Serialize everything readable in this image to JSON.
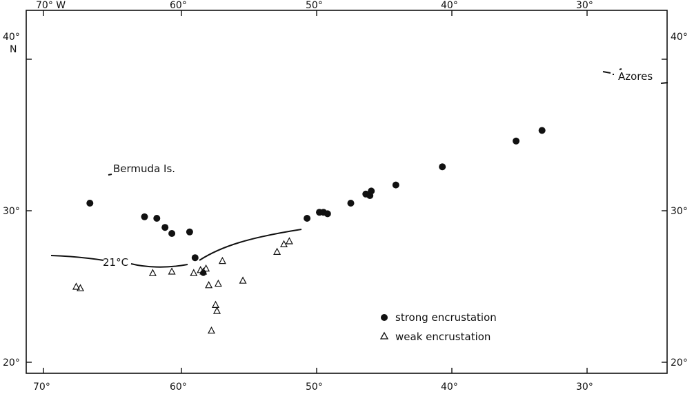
{
  "top_axis_labels": [
    "70° W",
    "60°",
    "50°",
    "40°",
    "30°"
  ],
  "bottom_axis_labels": [
    "70°",
    "60°",
    "50°",
    "40°",
    "30°"
  ],
  "left_axis_labels": [
    "40°",
    "30°",
    "20°"
  ],
  "right_axis_labels": [
    "40°",
    "30°",
    "20°"
  ],
  "north_label": "N",
  "places": {
    "bermuda": "Bermuda Is.",
    "azores": "Azores"
  },
  "isotherm_label": "21°C",
  "legend": {
    "strong": "strong encrustation",
    "weak": "weak encrustation"
  },
  "strong_points": [
    [
      -66.6,
      30.5
    ],
    [
      -62.6,
      29.6
    ],
    [
      -61.7,
      29.5
    ],
    [
      -61.1,
      28.9
    ],
    [
      -60.6,
      28.5
    ],
    [
      -59.3,
      28.6
    ],
    [
      -58.9,
      26.9
    ],
    [
      -50.7,
      29.5
    ],
    [
      -49.8,
      29.9
    ],
    [
      -49.5,
      29.9
    ],
    [
      -49.2,
      29.8
    ],
    [
      -47.5,
      30.5
    ],
    [
      -46.4,
      31.1
    ],
    [
      -46.1,
      31.0
    ],
    [
      -46.0,
      31.3
    ],
    [
      -44.2,
      31.7
    ],
    [
      -40.8,
      32.9
    ],
    [
      -35.4,
      34.6
    ],
    [
      -33.5,
      35.3
    ]
  ],
  "weak_points": [
    [
      -67.6,
      25.0
    ],
    [
      -67.3,
      24.9
    ],
    [
      -62.0,
      25.9
    ],
    [
      -60.6,
      26.0
    ],
    [
      -59.0,
      25.9
    ],
    [
      -58.5,
      26.1
    ],
    [
      -58.3,
      26.0
    ],
    [
      -58.1,
      26.2
    ],
    [
      -57.9,
      25.1
    ],
    [
      -57.4,
      23.8
    ],
    [
      -57.3,
      23.4
    ],
    [
      -57.2,
      25.2
    ],
    [
      -56.9,
      26.7
    ],
    [
      -57.7,
      22.1
    ],
    [
      -55.4,
      25.4
    ],
    [
      -52.9,
      27.3
    ],
    [
      -52.4,
      27.8
    ],
    [
      -52.0,
      28.0
    ]
  ],
  "strong_on_line": [
    -58.3,
    25.9
  ]
}
